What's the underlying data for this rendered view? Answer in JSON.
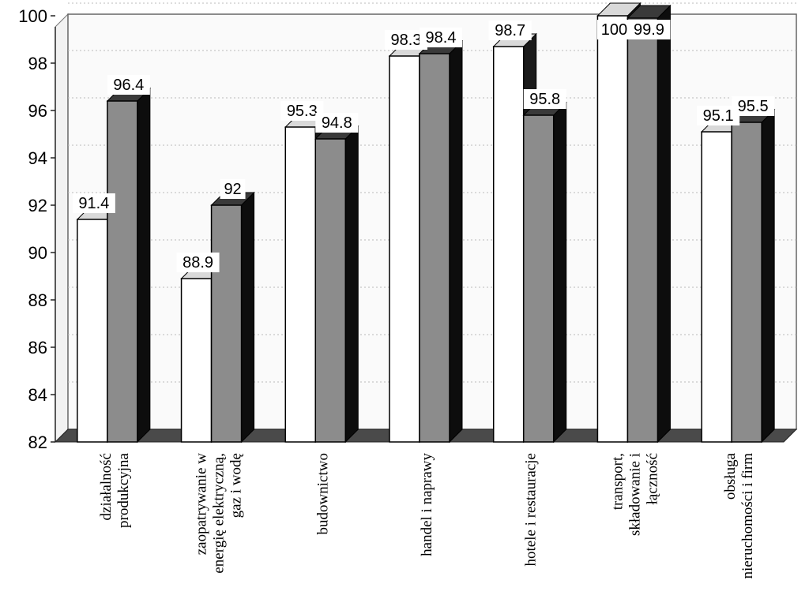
{
  "chart_data": {
    "type": "bar",
    "style": "3d-clustered",
    "categories": [
      [
        "działalność",
        "produkcyjna"
      ],
      [
        "zaopatrywanie w",
        "energię elektryczną,",
        "gaz i wodę"
      ],
      [
        "budownictwo"
      ],
      [
        "handel i naprawy"
      ],
      [
        "hotele i restauracje"
      ],
      [
        "transport,",
        "składowanie i",
        "łączność"
      ],
      [
        "obsługa",
        "nieruchomości i firm"
      ]
    ],
    "series": [
      {
        "name": "series-1",
        "color": "#ffffff",
        "values": [
          91.4,
          88.9,
          95.3,
          98.3,
          98.7,
          100,
          95.1
        ]
      },
      {
        "name": "series-2",
        "color": "#8c8c8c",
        "values": [
          96.4,
          92,
          94.8,
          98.4,
          95.8,
          99.9,
          95.5
        ]
      }
    ],
    "data_labels": {
      "series-1": [
        "91.4",
        "88.9",
        "95.3",
        "98.3",
        "98.7",
        "100",
        "95.1"
      ],
      "series-2": [
        "96.4",
        "92",
        "94.8",
        "98.4",
        "95.8",
        "99.9",
        "95.5"
      ]
    },
    "y_ticks": [
      "82",
      "84",
      "86",
      "88",
      "90",
      "92",
      "94",
      "96",
      "98",
      "100"
    ],
    "ylim": [
      82,
      100
    ],
    "title": "",
    "xlabel": "",
    "ylabel": "",
    "legend": "none",
    "grid": true
  }
}
